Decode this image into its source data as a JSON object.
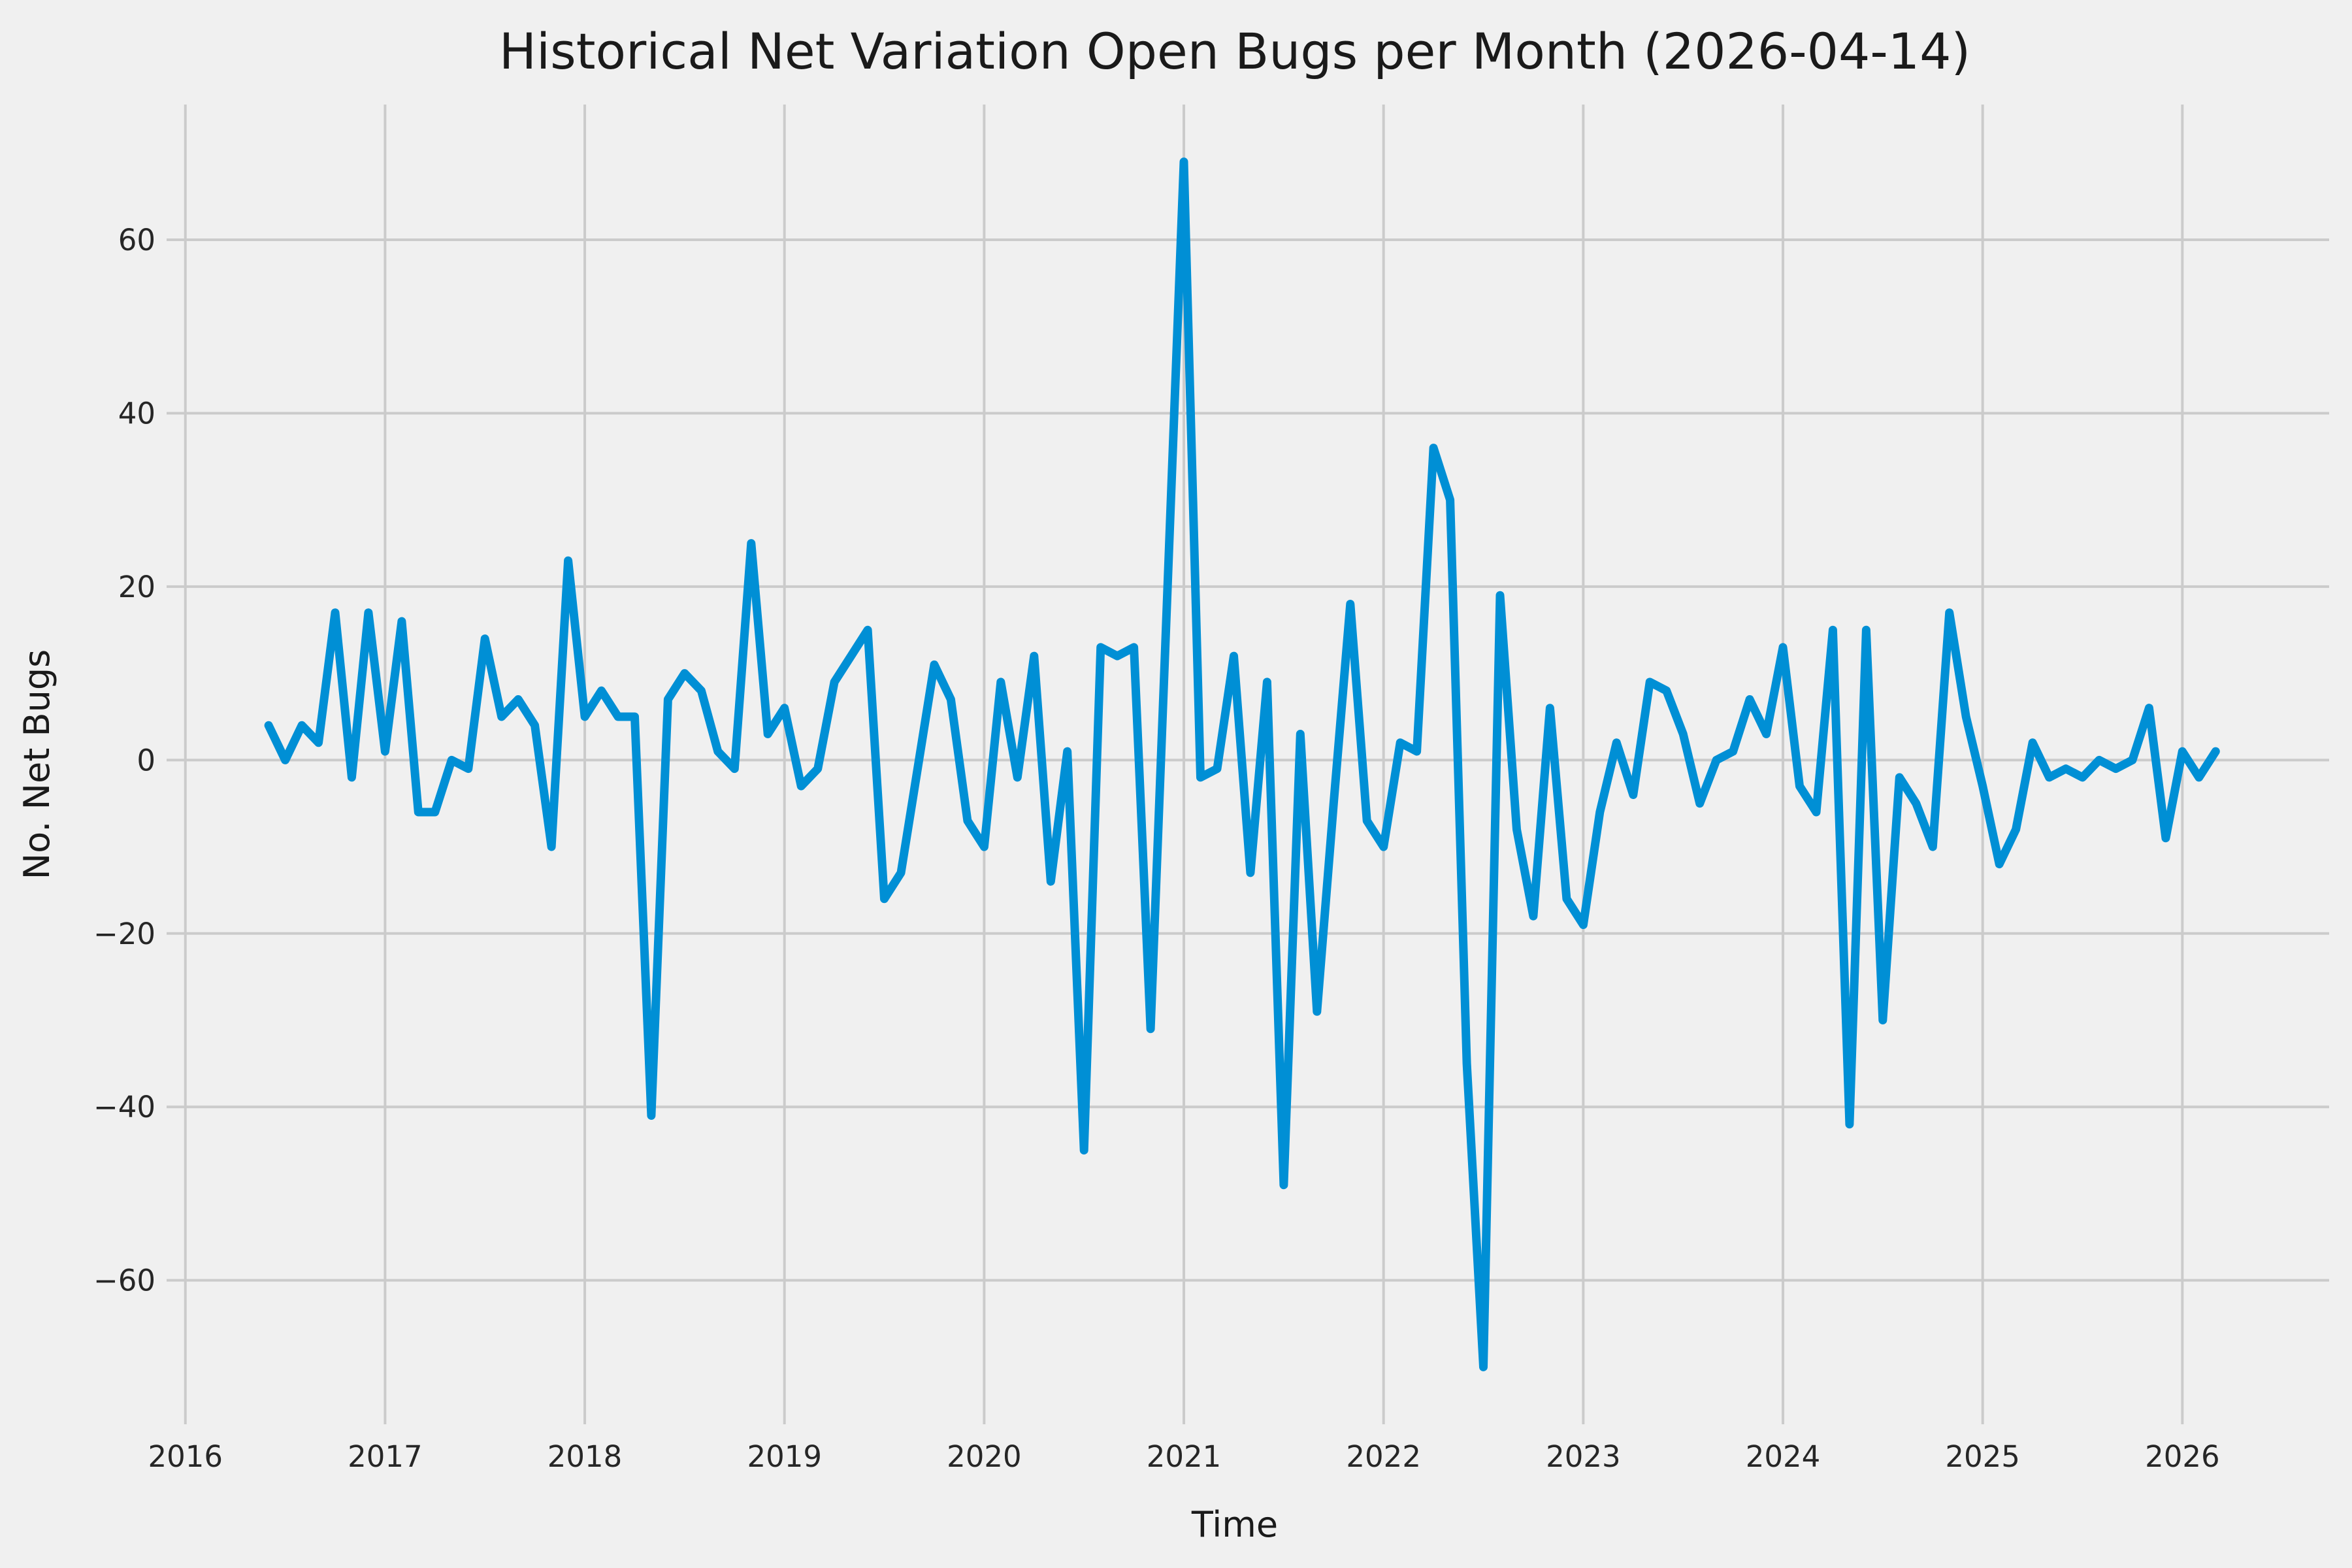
{
  "title": "Historical Net Variation Open Bugs per Month (2026-04-14)",
  "x_axis": {
    "label": "Time",
    "ticks": [
      2016,
      2017,
      2018,
      2019,
      2020,
      2021,
      2022,
      2023,
      2024,
      2025,
      2026
    ]
  },
  "y_axis": {
    "label": "No. Net Bugs",
    "ticks": [
      -60,
      -40,
      -20,
      0,
      20,
      40,
      60
    ]
  },
  "colors": {
    "background": "#f0f0f0",
    "grid": "#cbcbcb",
    "line": "#008fd5",
    "text": "#262626"
  },
  "chart_data": {
    "type": "line",
    "title": "Historical Net Variation Open Bugs per Month (2026-04-14)",
    "xlabel": "Time",
    "ylabel": "No. Net Bugs",
    "legend": false,
    "grid": true,
    "x_freq": "monthly",
    "x": [
      "2016-06",
      "2016-07",
      "2016-08",
      "2016-09",
      "2016-10",
      "2016-11",
      "2016-12",
      "2017-01",
      "2017-02",
      "2017-03",
      "2017-04",
      "2017-05",
      "2017-06",
      "2017-07",
      "2017-08",
      "2017-09",
      "2017-10",
      "2017-11",
      "2017-12",
      "2018-01",
      "2018-02",
      "2018-03",
      "2018-04",
      "2018-05",
      "2018-06",
      "2018-07",
      "2018-08",
      "2018-09",
      "2018-10",
      "2018-11",
      "2018-12",
      "2019-01",
      "2019-02",
      "2019-03",
      "2019-04",
      "2019-05",
      "2019-06",
      "2019-07",
      "2019-08",
      "2019-09",
      "2019-10",
      "2019-11",
      "2019-12",
      "2020-01",
      "2020-02",
      "2020-03",
      "2020-04",
      "2020-05",
      "2020-06",
      "2020-07",
      "2020-08",
      "2020-09",
      "2020-10",
      "2020-11",
      "2020-12",
      "2021-01",
      "2021-02",
      "2021-03",
      "2021-04",
      "2021-05",
      "2021-06",
      "2021-07",
      "2021-08",
      "2021-09",
      "2021-10",
      "2021-11",
      "2021-12",
      "2022-01",
      "2022-02",
      "2022-03",
      "2022-04",
      "2022-05",
      "2022-06",
      "2022-07",
      "2022-08",
      "2022-09",
      "2022-10",
      "2022-11",
      "2022-12",
      "2023-01",
      "2023-02",
      "2023-03",
      "2023-04",
      "2023-05",
      "2023-06",
      "2023-07",
      "2023-08",
      "2023-09",
      "2023-10",
      "2023-11",
      "2023-12",
      "2024-01",
      "2024-02",
      "2024-03",
      "2024-04",
      "2024-05",
      "2024-06",
      "2024-07",
      "2024-08",
      "2024-09",
      "2024-10",
      "2024-11",
      "2024-12",
      "2025-01",
      "2025-02",
      "2025-03",
      "2025-04",
      "2025-05",
      "2025-06",
      "2025-07",
      "2025-08",
      "2025-09",
      "2025-10",
      "2025-11",
      "2025-12",
      "2026-01",
      "2026-02",
      "2026-03"
    ],
    "values": [
      4,
      0,
      4,
      2,
      17,
      -2,
      17,
      1,
      16,
      -6,
      -6,
      0,
      -1,
      14,
      5,
      7,
      4,
      -10,
      23,
      5,
      8,
      5,
      5,
      -41,
      7,
      10,
      8,
      1,
      -1,
      25,
      3,
      6,
      -3,
      -1,
      9,
      12,
      15,
      -16,
      -13,
      -1,
      11,
      7,
      -7,
      -10,
      9,
      -2,
      12,
      -14,
      1,
      -45,
      13,
      12,
      13,
      -31,
      19,
      69,
      -2,
      -1,
      12,
      -13,
      9,
      -49,
      3,
      -29,
      -5,
      18,
      -7,
      -10,
      2,
      1,
      36,
      30,
      -35,
      -70,
      19,
      -8,
      -18,
      6,
      -16,
      -19,
      -6,
      2,
      -4,
      9,
      8,
      3,
      -5,
      0,
      1,
      7,
      3,
      13,
      -3,
      -6,
      15,
      -42,
      15,
      -30,
      -2,
      -5,
      -10,
      17,
      5,
      -3,
      -12,
      -8,
      2,
      -2,
      -1,
      -2,
      0,
      -1,
      0,
      6,
      -9,
      1,
      -2,
      1
    ],
    "xlim_years": [
      2015.906,
      2026.735
    ],
    "ylim": [
      -76.6,
      75.6
    ]
  }
}
